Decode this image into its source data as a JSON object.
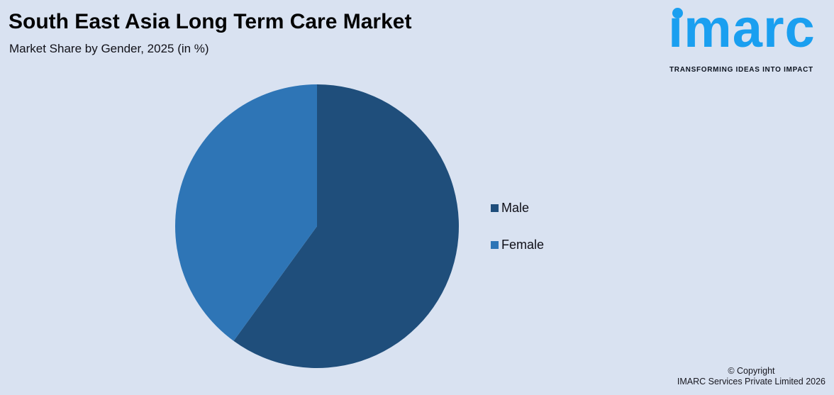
{
  "header": {
    "title": "South East Asia Long Term Care Market",
    "subtitle": "Market Share by Gender, 2025 (in %)"
  },
  "logo": {
    "brand": "imarc",
    "brand_display": "ımarc",
    "tagline": "TRANSFORMING IDEAS INTO IMPACT",
    "brand_color": "#1a9ff0"
  },
  "chart_data": {
    "type": "pie",
    "title": "South East Asia Long Term Care Market",
    "subtitle": "Market Share by Gender, 2025 (in %)",
    "categories": [
      "Male",
      "Female"
    ],
    "values": [
      60,
      40
    ],
    "unit": "%",
    "colors": [
      "#1f4e7b",
      "#2e75b6"
    ],
    "start_angle_deg": 0,
    "direction": "clockwise",
    "legend_position": "right",
    "data_labels_shown": false
  },
  "legend": {
    "items": [
      {
        "label": "Male",
        "color": "#1f4e7b"
      },
      {
        "label": "Female",
        "color": "#2e75b6"
      }
    ]
  },
  "footer": {
    "copyright_line1": "© Copyright",
    "copyright_line2": "IMARC Services Private Limited 2026"
  },
  "colors": {
    "background": "#d9e2f1",
    "title_text": "#030303"
  }
}
